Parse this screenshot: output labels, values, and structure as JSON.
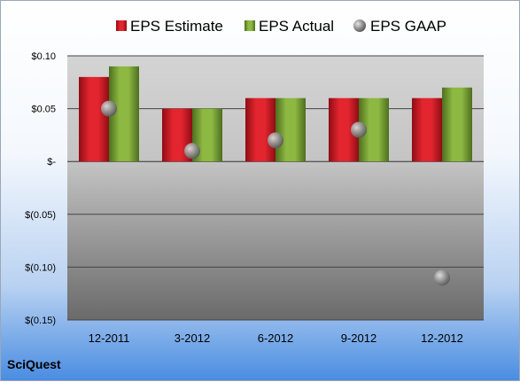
{
  "brand": "SciQuest",
  "legend": [
    "EPS Estimate",
    "EPS Actual",
    "EPS GAAP"
  ],
  "colors": {
    "estimate": "#c8141e",
    "actual": "#6f9a32",
    "gaap": "#8a8a8a"
  },
  "chart_data": {
    "type": "bar",
    "categories": [
      "12-2011",
      "3-2012",
      "6-2012",
      "9-2012",
      "12-2012"
    ],
    "series": [
      {
        "name": "EPS Estimate",
        "values": [
          0.08,
          0.05,
          0.06,
          0.06,
          0.06
        ]
      },
      {
        "name": "EPS Actual",
        "values": [
          0.09,
          0.05,
          0.06,
          0.06,
          0.07
        ]
      },
      {
        "name": "EPS GAAP",
        "type": "scatter",
        "values": [
          0.05,
          0.01,
          0.02,
          0.03,
          -0.11
        ]
      }
    ],
    "ylim": [
      -0.15,
      0.1
    ],
    "yticks": [
      0.1,
      0.05,
      0,
      -0.05,
      -0.1,
      -0.15
    ],
    "ytick_labels": [
      "$0.10",
      "$0.05",
      "$-",
      "$(0.05)",
      "$(0.10)",
      "$(0.15)"
    ],
    "grid": true,
    "legend_position": "top"
  }
}
